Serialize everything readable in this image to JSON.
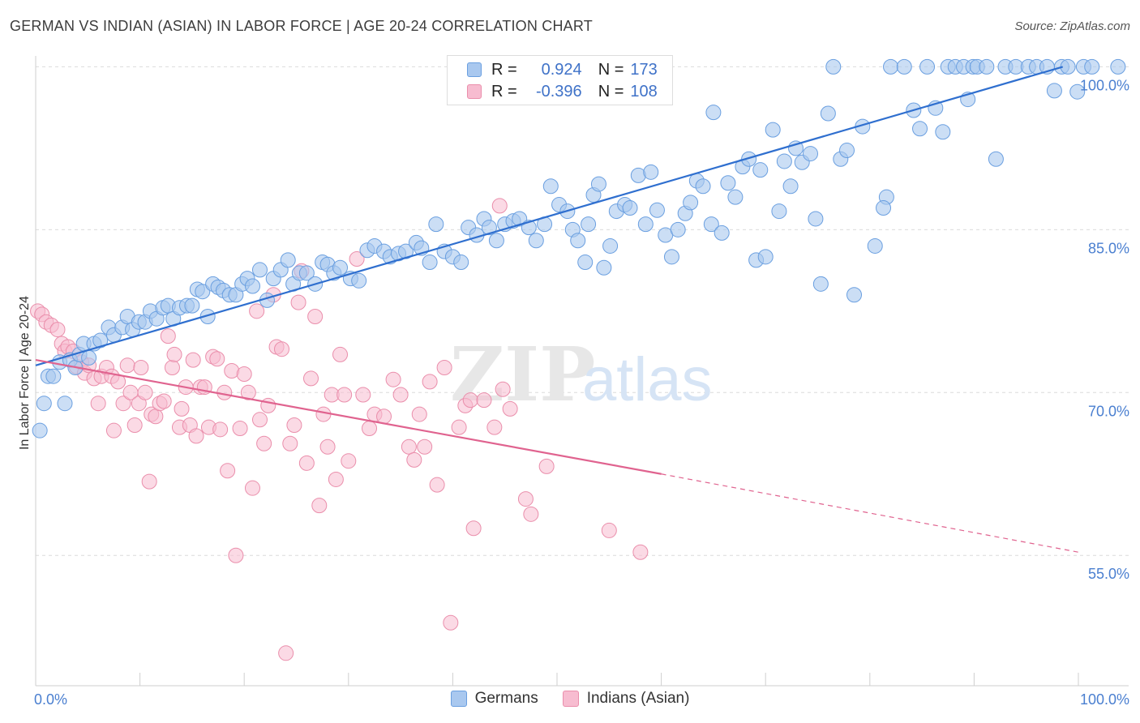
{
  "title": "GERMAN VS INDIAN (ASIAN) IN LABOR FORCE | AGE 20-24 CORRELATION CHART",
  "source": "Source: ZipAtlas.com",
  "watermark": {
    "zip": "ZIP",
    "atlas": "atlas"
  },
  "legend": {
    "rows": [
      {
        "r_label": "R =",
        "r_value": "0.924",
        "n_label": "N =",
        "n_value": "173"
      },
      {
        "r_label": "R =",
        "r_value": "-0.396",
        "n_label": "N =",
        "n_value": "108"
      }
    ]
  },
  "bottom_legend": [
    "Germans",
    "Indians (Asian)"
  ],
  "colors": {
    "blue_fill": "#a9c8ef",
    "blue_stroke": "#6a9fe0",
    "blue_line": "#2f6fcf",
    "pink_fill": "#f7bcd0",
    "pink_stroke": "#ea8eab",
    "pink_line": "#e0638f",
    "tick_text": "#4a7fd0"
  },
  "chart_data": {
    "type": "scatter",
    "title": "GERMAN VS INDIAN (ASIAN) IN LABOR FORCE | AGE 20-24 CORRELATION CHART",
    "xlabel": "",
    "ylabel": "In Labor Force | Age 20-24",
    "x_tick_labels": [
      "0.0%",
      "100.0%"
    ],
    "y_tick_labels": [
      "100.0%",
      "85.0%",
      "70.0%",
      "55.0%"
    ],
    "y_ticks": [
      100,
      85,
      70,
      55
    ],
    "xlim": [
      0,
      100
    ],
    "ylim": [
      43,
      101
    ],
    "grid": true,
    "legend_position": "top-center",
    "series": [
      {
        "name": "Germans",
        "r": 0.924,
        "n": 173,
        "trend": {
          "x0": 0,
          "y0": 72.5,
          "x1": 98.5,
          "y1": 100
        },
        "points": [
          [
            0.4,
            66.5
          ],
          [
            0.8,
            69
          ],
          [
            1.2,
            71.5
          ],
          [
            1.7,
            71.5
          ],
          [
            2.3,
            72.8
          ],
          [
            2.8,
            69
          ],
          [
            3.3,
            73
          ],
          [
            3.8,
            72.3
          ],
          [
            4.2,
            73.5
          ],
          [
            4.6,
            74.5
          ],
          [
            5.1,
            73.2
          ],
          [
            5.6,
            74.5
          ],
          [
            6.2,
            74.8
          ],
          [
            7,
            76
          ],
          [
            7.5,
            75.3
          ],
          [
            8.3,
            76
          ],
          [
            8.8,
            77
          ],
          [
            9.3,
            75.8
          ],
          [
            9.9,
            76.5
          ],
          [
            10.5,
            76.5
          ],
          [
            11,
            77.5
          ],
          [
            11.6,
            76.8
          ],
          [
            12.2,
            77.8
          ],
          [
            12.7,
            78
          ],
          [
            13.2,
            76.8
          ],
          [
            13.8,
            77.8
          ],
          [
            14.5,
            78
          ],
          [
            15,
            78
          ],
          [
            15.5,
            79.5
          ],
          [
            16,
            79.3
          ],
          [
            16.5,
            77
          ],
          [
            17,
            80
          ],
          [
            17.5,
            79.7
          ],
          [
            18,
            79.4
          ],
          [
            18.6,
            79
          ],
          [
            19.2,
            79
          ],
          [
            19.8,
            80
          ],
          [
            20.3,
            80.5
          ],
          [
            20.8,
            79.8
          ],
          [
            21.5,
            81.3
          ],
          [
            22.2,
            78.5
          ],
          [
            22.8,
            80.5
          ],
          [
            23.5,
            81.3
          ],
          [
            24.2,
            82.2
          ],
          [
            24.7,
            80
          ],
          [
            25.3,
            81
          ],
          [
            26,
            81
          ],
          [
            26.8,
            80
          ],
          [
            27.5,
            82
          ],
          [
            28,
            81.8
          ],
          [
            28.6,
            81
          ],
          [
            29.2,
            81.5
          ],
          [
            30.2,
            80.5
          ],
          [
            31,
            80.3
          ],
          [
            31.8,
            83.1
          ],
          [
            32.5,
            83.5
          ],
          [
            33.4,
            83
          ],
          [
            34,
            82.5
          ],
          [
            34.8,
            82.8
          ],
          [
            35.5,
            83
          ],
          [
            36.5,
            83.8
          ],
          [
            37,
            83.3
          ],
          [
            37.8,
            82
          ],
          [
            38.4,
            85.5
          ],
          [
            39.2,
            83
          ],
          [
            40,
            82.5
          ],
          [
            40.8,
            82
          ],
          [
            41.5,
            85.2
          ],
          [
            42.3,
            84.5
          ],
          [
            43,
            86
          ],
          [
            43.5,
            85.2
          ],
          [
            44.2,
            84
          ],
          [
            45,
            85.5
          ],
          [
            45.8,
            85.8
          ],
          [
            46.4,
            86
          ],
          [
            47.3,
            85.2
          ],
          [
            48,
            84
          ],
          [
            48.8,
            85.5
          ],
          [
            49.4,
            89
          ],
          [
            50.2,
            87.3
          ],
          [
            51,
            86.7
          ],
          [
            51.5,
            85
          ],
          [
            52,
            84
          ],
          [
            52.7,
            82
          ],
          [
            53,
            85.5
          ],
          [
            53.5,
            88.2
          ],
          [
            54,
            89.2
          ],
          [
            54.5,
            81.5
          ],
          [
            55.1,
            83.5
          ],
          [
            55.7,
            86.7
          ],
          [
            56.5,
            87.3
          ],
          [
            57,
            87
          ],
          [
            57.8,
            90
          ],
          [
            58.5,
            85.5
          ],
          [
            59,
            90.3
          ],
          [
            59.6,
            86.8
          ],
          [
            60.4,
            84.5
          ],
          [
            61,
            82.5
          ],
          [
            61.6,
            85
          ],
          [
            62.3,
            86.5
          ],
          [
            62.8,
            87.5
          ],
          [
            63.4,
            89.5
          ],
          [
            64,
            89
          ],
          [
            64.8,
            85.5
          ],
          [
            65,
            95.8
          ],
          [
            65.8,
            84.7
          ],
          [
            66.4,
            89.3
          ],
          [
            67.1,
            88
          ],
          [
            67.8,
            90.8
          ],
          [
            68.4,
            91.5
          ],
          [
            69.1,
            82.2
          ],
          [
            69.5,
            90.5
          ],
          [
            70,
            82.5
          ],
          [
            70.7,
            94.2
          ],
          [
            71.3,
            86.7
          ],
          [
            71.8,
            91.3
          ],
          [
            72.4,
            89
          ],
          [
            72.9,
            92.5
          ],
          [
            73.5,
            91.2
          ],
          [
            74.3,
            92
          ],
          [
            74.8,
            86
          ],
          [
            75.3,
            80
          ],
          [
            76,
            95.7
          ],
          [
            76.5,
            100
          ],
          [
            77.2,
            91.5
          ],
          [
            77.8,
            92.3
          ],
          [
            78.5,
            79
          ],
          [
            79.3,
            94.5
          ],
          [
            80.5,
            83.5
          ],
          [
            81.6,
            88
          ],
          [
            81.3,
            87
          ],
          [
            82,
            100
          ],
          [
            83.3,
            100
          ],
          [
            84.2,
            96
          ],
          [
            84.8,
            94.3
          ],
          [
            85.5,
            100
          ],
          [
            86.3,
            96.2
          ],
          [
            87,
            94
          ],
          [
            87.5,
            100
          ],
          [
            88.2,
            100
          ],
          [
            89,
            100
          ],
          [
            89.4,
            97
          ],
          [
            89.9,
            100
          ],
          [
            90.3,
            100
          ],
          [
            91.2,
            100
          ],
          [
            92.1,
            91.5
          ],
          [
            93,
            100
          ],
          [
            94,
            100
          ],
          [
            95.2,
            100
          ],
          [
            96,
            100
          ],
          [
            97,
            100
          ],
          [
            97.7,
            97.8
          ],
          [
            98.4,
            100
          ],
          [
            99,
            100
          ],
          [
            99.9,
            97.7
          ],
          [
            100.5,
            100
          ],
          [
            101.3,
            100
          ],
          [
            103.8,
            100
          ]
        ]
      },
      {
        "name": "Indians (Asian)",
        "r": -0.396,
        "n": 108,
        "trend": {
          "x0": 0,
          "y0": 73,
          "x1": 60,
          "y1": 62.5,
          "dash_to_x": 100,
          "dash_to_y": 55.3
        },
        "points": [
          [
            0.2,
            77.5
          ],
          [
            0.6,
            77.2
          ],
          [
            1,
            76.5
          ],
          [
            1.5,
            76.2
          ],
          [
            2.1,
            75.8
          ],
          [
            2.5,
            74.5
          ],
          [
            2.8,
            73.8
          ],
          [
            3.1,
            74.2
          ],
          [
            3.6,
            73.8
          ],
          [
            3.9,
            72.4
          ],
          [
            4.4,
            72.8
          ],
          [
            4.7,
            71.8
          ],
          [
            5.1,
            72.5
          ],
          [
            5.6,
            71.3
          ],
          [
            6,
            69
          ],
          [
            6.3,
            71.5
          ],
          [
            6.8,
            72.3
          ],
          [
            7.3,
            71.5
          ],
          [
            7.5,
            66.5
          ],
          [
            7.9,
            71
          ],
          [
            8.4,
            69
          ],
          [
            8.8,
            72.5
          ],
          [
            9.1,
            70
          ],
          [
            9.5,
            67
          ],
          [
            9.9,
            69
          ],
          [
            10.1,
            72.3
          ],
          [
            10.5,
            70
          ],
          [
            10.9,
            61.8
          ],
          [
            11.1,
            68
          ],
          [
            11.5,
            67.8
          ],
          [
            11.9,
            69
          ],
          [
            12.3,
            69.2
          ],
          [
            12.7,
            75.2
          ],
          [
            13.1,
            72.3
          ],
          [
            13.3,
            73.5
          ],
          [
            13.8,
            66.8
          ],
          [
            14,
            68.5
          ],
          [
            14.4,
            70.5
          ],
          [
            14.8,
            67
          ],
          [
            15.1,
            73
          ],
          [
            15.4,
            66
          ],
          [
            15.8,
            70.5
          ],
          [
            16.2,
            70.5
          ],
          [
            16.6,
            66.8
          ],
          [
            17,
            73.3
          ],
          [
            17.4,
            73.1
          ],
          [
            17.7,
            66.6
          ],
          [
            18.1,
            70
          ],
          [
            18.4,
            62.8
          ],
          [
            18.8,
            72
          ],
          [
            19.2,
            55
          ],
          [
            19.6,
            66.7
          ],
          [
            20,
            71.7
          ],
          [
            20.4,
            70
          ],
          [
            20.8,
            61.2
          ],
          [
            21.2,
            77.5
          ],
          [
            21.5,
            67.5
          ],
          [
            21.9,
            65.3
          ],
          [
            22.3,
            68.8
          ],
          [
            22.8,
            79
          ],
          [
            23.1,
            74.2
          ],
          [
            23.6,
            74
          ],
          [
            24,
            46
          ],
          [
            24.4,
            65.3
          ],
          [
            24.8,
            67
          ],
          [
            25.2,
            78.3
          ],
          [
            25.5,
            81.2
          ],
          [
            26,
            63.5
          ],
          [
            26.4,
            71.3
          ],
          [
            26.8,
            77
          ],
          [
            27.2,
            59.6
          ],
          [
            27.6,
            68
          ],
          [
            28,
            65
          ],
          [
            28.4,
            69.8
          ],
          [
            28.8,
            62
          ],
          [
            29.2,
            73.5
          ],
          [
            29.6,
            69.8
          ],
          [
            30,
            63.7
          ],
          [
            30.8,
            82.3
          ],
          [
            31.4,
            69.8
          ],
          [
            32,
            66.7
          ],
          [
            32.5,
            68
          ],
          [
            33.4,
            67.8
          ],
          [
            34.3,
            71.2
          ],
          [
            35,
            69.8
          ],
          [
            35.8,
            65
          ],
          [
            36.3,
            63.8
          ],
          [
            36.8,
            68
          ],
          [
            37.3,
            65
          ],
          [
            37.8,
            71
          ],
          [
            38.5,
            61.5
          ],
          [
            39.2,
            72.3
          ],
          [
            39.8,
            48.8
          ],
          [
            40.6,
            66.8
          ],
          [
            41.2,
            68.8
          ],
          [
            41.7,
            69.3
          ],
          [
            42,
            57.5
          ],
          [
            43,
            69.3
          ],
          [
            44,
            66.8
          ],
          [
            44.5,
            87.2
          ],
          [
            44.8,
            70.3
          ],
          [
            45.5,
            68.5
          ],
          [
            47,
            60.2
          ],
          [
            47.5,
            58.8
          ],
          [
            49,
            63.2
          ],
          [
            55,
            57.3
          ],
          [
            58,
            55.3
          ]
        ]
      }
    ]
  }
}
